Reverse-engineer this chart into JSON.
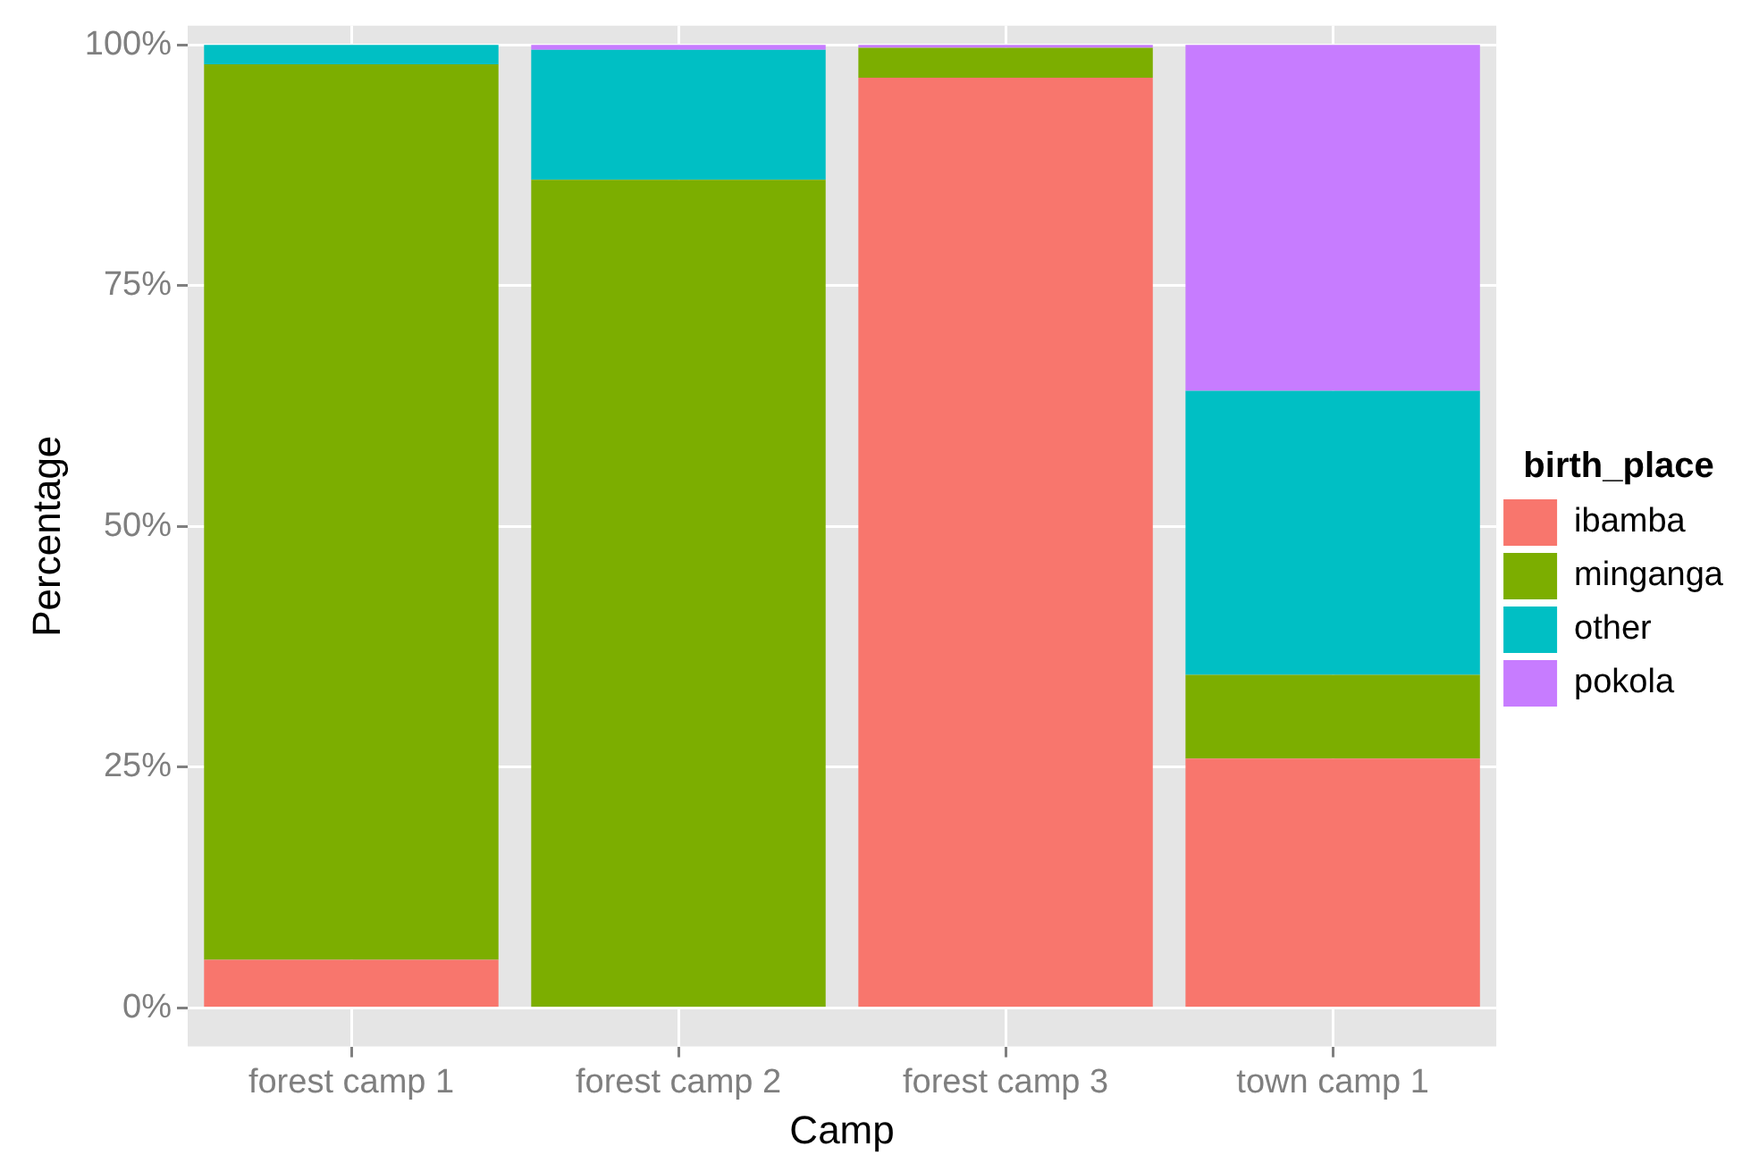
{
  "chart_data": {
    "type": "bar",
    "stacked": true,
    "xlabel": "Camp",
    "ylabel": "Percentage",
    "legend_title": "birth_place",
    "legend": "right",
    "grid": true,
    "categories": [
      "forest camp 1",
      "forest camp 2",
      "forest camp 3",
      "town camp 1"
    ],
    "ylim": [
      -4,
      102
    ],
    "yticks": [
      {
        "value": 0,
        "label": "0%"
      },
      {
        "value": 25,
        "label": "25%"
      },
      {
        "value": 50,
        "label": "50%"
      },
      {
        "value": 75,
        "label": "75%"
      },
      {
        "value": 100,
        "label": "100%"
      }
    ],
    "series": [
      {
        "name": "ibamba",
        "color": "#f8766d",
        "values": [
          5,
          0,
          96.6,
          25.9
        ]
      },
      {
        "name": "minganga",
        "color": "#7cae00",
        "values": [
          93,
          86,
          3.1,
          8.7
        ]
      },
      {
        "name": "other",
        "color": "#00bfc4",
        "values": [
          2,
          13.5,
          0,
          29.5
        ]
      },
      {
        "name": "pokola",
        "color": "#c77cff",
        "values": [
          0,
          0.5,
          0.3,
          35.9
        ]
      }
    ]
  }
}
